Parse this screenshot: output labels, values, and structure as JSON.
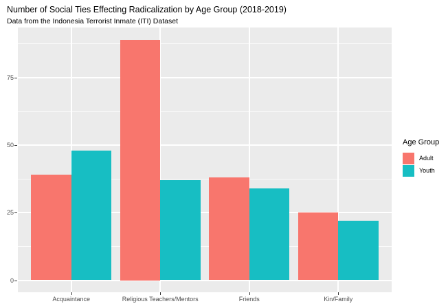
{
  "title": "Number of Social Ties Effecting Radicalization by Age Group (2018-2019)",
  "subtitle": "Data from the Indonesia Terrorist Inmate (ITI) Dataset",
  "legend": {
    "title": "Age Group",
    "entries": [
      {
        "label": "Adult",
        "color": "#F8766D"
      },
      {
        "label": "Youth",
        "color": "#17BEC3"
      }
    ]
  },
  "colors": {
    "panel_background": "#EBEBEB",
    "gridline": "#FFFFFF",
    "axis_text": "#4D4D4D",
    "tick_mark": "#333333"
  },
  "chart_data": {
    "type": "bar",
    "grouping": "dodged",
    "title": "Number of Social Ties Effecting Radicalization by Age Group (2018-2019)",
    "subtitle": "Data from the Indonesia Terrorist Inmate (ITI) Dataset",
    "categories": [
      "Acquaintance",
      "Religious Teachers/Mentors",
      "Friends",
      "Kin/Family"
    ],
    "series": [
      {
        "name": "Adult",
        "color": "#F8766D",
        "values": [
          39,
          89,
          38,
          25
        ]
      },
      {
        "name": "Youth",
        "color": "#17BEC3",
        "values": [
          48,
          37,
          34,
          22
        ]
      }
    ],
    "xlabel": "",
    "ylabel": "",
    "yticks": [
      0,
      25,
      50,
      75
    ],
    "yticks_minor": [
      12.5,
      37.5,
      62.5,
      87.5
    ],
    "ylim": [
      0,
      89
    ],
    "y_expand": 0.05,
    "legend_title": "Age Group",
    "legend_position": "right",
    "grid": true
  }
}
